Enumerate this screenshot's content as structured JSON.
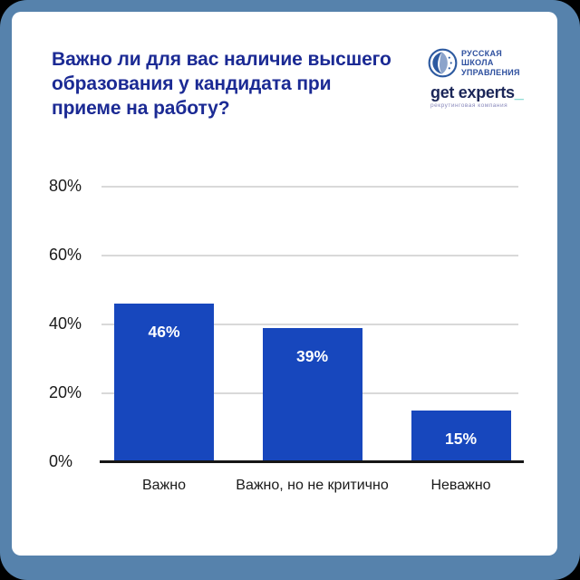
{
  "frame": {
    "border_color": "#5682ac",
    "card_color": "#ffffff",
    "outside_color": "#000000"
  },
  "header": {
    "title": "Важно ли для вас наличие высшего\nобразования у кандидата при\nприеме на работу?",
    "title_color": "#1b2a94"
  },
  "logos": {
    "rsu": {
      "lines": [
        "РУССКАЯ",
        "ШКОЛА",
        "УПРАВЛЕНИЯ"
      ],
      "color": "#2d4f9e"
    },
    "get_experts": {
      "wordmark": "get experts",
      "underscore": "_",
      "tagline": "рекрутинговая компания",
      "wordmark_color": "#1b2658",
      "accent_color": "#38c2b4",
      "tagline_color": "#8888bb"
    }
  },
  "chart_data": {
    "type": "bar",
    "title": "Важно ли для вас наличие высшего образования у кандидата при приеме на работу?",
    "categories": [
      "Важно",
      "Важно, но не критично",
      "Неважно"
    ],
    "values": [
      46,
      39,
      15
    ],
    "value_labels": [
      "46%",
      "39%",
      "15%"
    ],
    "yticks": [
      0,
      20,
      40,
      60,
      80
    ],
    "ytick_labels": [
      "0%",
      "20%",
      "40%",
      "60%",
      "80%"
    ],
    "ylim": [
      0,
      80
    ],
    "xlabel": "",
    "ylabel": "",
    "grid": true,
    "legend": false,
    "bar_color": "#1747bd",
    "gridline_color": "#d9d9d9",
    "axis_color": "#161616",
    "tick_label_color": "#1a1a1a",
    "value_label_color": "#ffffff"
  }
}
